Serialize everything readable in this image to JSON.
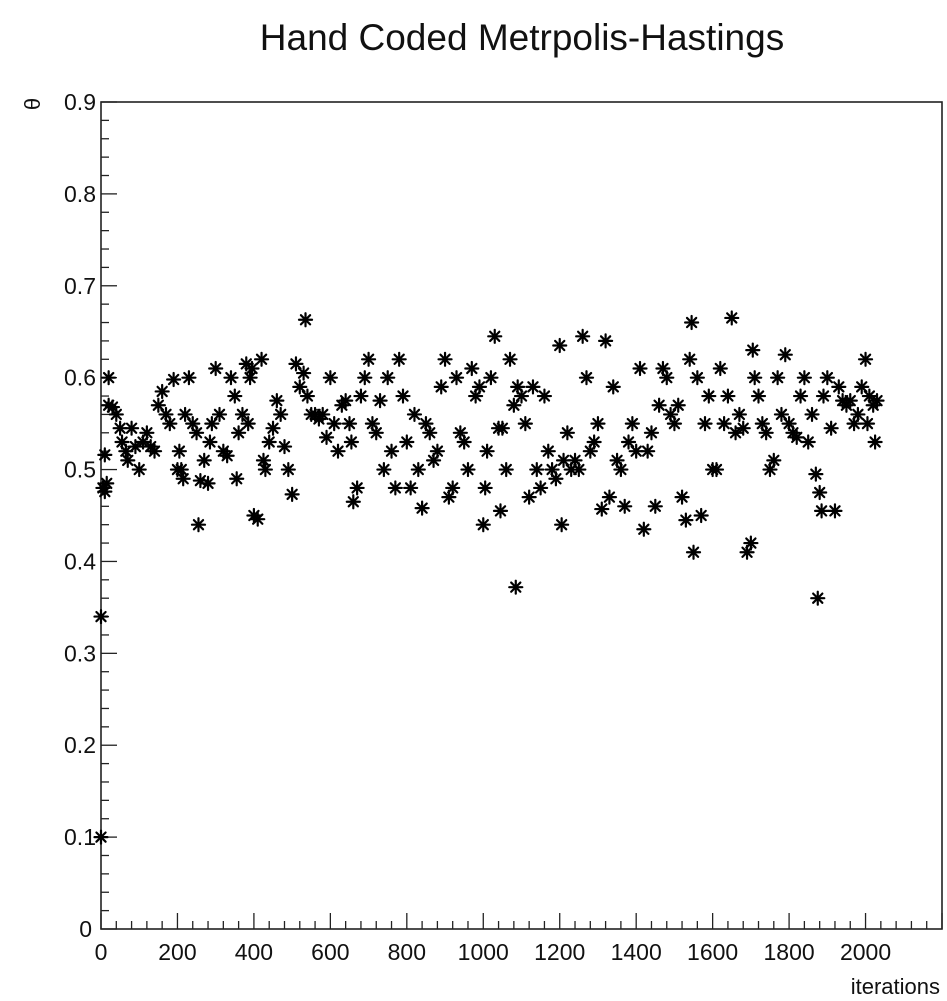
{
  "chart_data": {
    "type": "scatter",
    "title": "Hand Coded Metrpolis-Hastings",
    "xlabel": "iterations",
    "ylabel": "θ",
    "xlim": [
      0,
      2200
    ],
    "ylim": [
      0,
      0.9
    ],
    "marker": "asterisk",
    "grid": false,
    "marker_color": "#000000",
    "x_ticks": [
      0,
      200,
      400,
      600,
      800,
      1000,
      1200,
      1400,
      1600,
      1800,
      2000
    ],
    "x_tick_labels": [
      "0",
      "200",
      "400",
      "600",
      "800",
      "1000",
      "1200",
      "1400",
      "1600",
      "1800",
      "2000"
    ],
    "y_ticks": [
      0.1,
      0.2,
      0.3,
      0.4,
      0.5,
      0.6,
      0.7,
      0.8,
      0.9
    ],
    "y_tick_labels": [
      "0.1",
      "0.2",
      "0.3",
      "0.4",
      "0.5",
      "0.6",
      "0.7",
      "0.8",
      "0.9"
    ],
    "origin_label": "0",
    "points": [
      [
        0,
        0.1
      ],
      [
        0,
        0.34
      ],
      [
        5,
        0.48
      ],
      [
        10,
        0.476
      ],
      [
        15,
        0.485
      ],
      [
        10,
        0.516
      ],
      [
        20,
        0.6
      ],
      [
        20,
        0.57
      ],
      [
        30,
        0.568
      ],
      [
        40,
        0.56
      ],
      [
        50,
        0.545
      ],
      [
        55,
        0.53
      ],
      [
        65,
        0.52
      ],
      [
        70,
        0.51
      ],
      [
        80,
        0.545
      ],
      [
        90,
        0.525
      ],
      [
        100,
        0.5
      ],
      [
        110,
        0.53
      ],
      [
        120,
        0.54
      ],
      [
        130,
        0.525
      ],
      [
        140,
        0.52
      ],
      [
        150,
        0.57
      ],
      [
        160,
        0.585
      ],
      [
        170,
        0.56
      ],
      [
        180,
        0.55
      ],
      [
        190,
        0.598
      ],
      [
        200,
        0.5
      ],
      [
        205,
        0.52
      ],
      [
        210,
        0.5
      ],
      [
        215,
        0.49
      ],
      [
        220,
        0.56
      ],
      [
        230,
        0.6
      ],
      [
        240,
        0.55
      ],
      [
        250,
        0.54
      ],
      [
        255,
        0.44
      ],
      [
        260,
        0.488
      ],
      [
        270,
        0.51
      ],
      [
        280,
        0.485
      ],
      [
        285,
        0.53
      ],
      [
        290,
        0.55
      ],
      [
        300,
        0.61
      ],
      [
        310,
        0.56
      ],
      [
        320,
        0.52
      ],
      [
        330,
        0.515
      ],
      [
        340,
        0.6
      ],
      [
        350,
        0.58
      ],
      [
        355,
        0.49
      ],
      [
        360,
        0.54
      ],
      [
        370,
        0.56
      ],
      [
        380,
        0.615
      ],
      [
        385,
        0.55
      ],
      [
        390,
        0.6
      ],
      [
        395,
        0.61
      ],
      [
        400,
        0.45
      ],
      [
        410,
        0.446
      ],
      [
        420,
        0.62
      ],
      [
        425,
        0.51
      ],
      [
        430,
        0.5
      ],
      [
        440,
        0.53
      ],
      [
        450,
        0.545
      ],
      [
        460,
        0.575
      ],
      [
        470,
        0.56
      ],
      [
        480,
        0.525
      ],
      [
        490,
        0.5
      ],
      [
        500,
        0.473
      ],
      [
        510,
        0.615
      ],
      [
        520,
        0.59
      ],
      [
        530,
        0.605
      ],
      [
        535,
        0.663
      ],
      [
        540,
        0.58
      ],
      [
        550,
        0.56
      ],
      [
        560,
        0.56
      ],
      [
        570,
        0.555
      ],
      [
        580,
        0.56
      ],
      [
        590,
        0.535
      ],
      [
        600,
        0.6
      ],
      [
        610,
        0.55
      ],
      [
        620,
        0.52
      ],
      [
        630,
        0.57
      ],
      [
        640,
        0.575
      ],
      [
        650,
        0.55
      ],
      [
        655,
        0.53
      ],
      [
        660,
        0.465
      ],
      [
        670,
        0.48
      ],
      [
        680,
        0.58
      ],
      [
        690,
        0.6
      ],
      [
        700,
        0.62
      ],
      [
        710,
        0.55
      ],
      [
        720,
        0.54
      ],
      [
        730,
        0.575
      ],
      [
        740,
        0.5
      ],
      [
        750,
        0.6
      ],
      [
        760,
        0.52
      ],
      [
        770,
        0.48
      ],
      [
        780,
        0.62
      ],
      [
        790,
        0.58
      ],
      [
        800,
        0.53
      ],
      [
        810,
        0.48
      ],
      [
        820,
        0.56
      ],
      [
        830,
        0.5
      ],
      [
        840,
        0.458
      ],
      [
        850,
        0.55
      ],
      [
        860,
        0.54
      ],
      [
        870,
        0.51
      ],
      [
        880,
        0.52
      ],
      [
        890,
        0.59
      ],
      [
        900,
        0.62
      ],
      [
        910,
        0.47
      ],
      [
        920,
        0.48
      ],
      [
        930,
        0.6
      ],
      [
        940,
        0.54
      ],
      [
        950,
        0.53
      ],
      [
        960,
        0.5
      ],
      [
        970,
        0.61
      ],
      [
        980,
        0.58
      ],
      [
        990,
        0.59
      ],
      [
        1000,
        0.44
      ],
      [
        1005,
        0.48
      ],
      [
        1010,
        0.52
      ],
      [
        1020,
        0.6
      ],
      [
        1030,
        0.645
      ],
      [
        1040,
        0.545
      ],
      [
        1045,
        0.455
      ],
      [
        1050,
        0.545
      ],
      [
        1060,
        0.5
      ],
      [
        1070,
        0.62
      ],
      [
        1080,
        0.57
      ],
      [
        1085,
        0.372
      ],
      [
        1090,
        0.59
      ],
      [
        1100,
        0.58
      ],
      [
        1110,
        0.55
      ],
      [
        1120,
        0.47
      ],
      [
        1130,
        0.59
      ],
      [
        1140,
        0.5
      ],
      [
        1150,
        0.48
      ],
      [
        1160,
        0.58
      ],
      [
        1170,
        0.52
      ],
      [
        1180,
        0.5
      ],
      [
        1190,
        0.49
      ],
      [
        1200,
        0.635
      ],
      [
        1205,
        0.44
      ],
      [
        1210,
        0.51
      ],
      [
        1220,
        0.54
      ],
      [
        1230,
        0.5
      ],
      [
        1240,
        0.51
      ],
      [
        1250,
        0.5
      ],
      [
        1260,
        0.645
      ],
      [
        1270,
        0.6
      ],
      [
        1280,
        0.52
      ],
      [
        1290,
        0.53
      ],
      [
        1300,
        0.55
      ],
      [
        1310,
        0.457
      ],
      [
        1320,
        0.64
      ],
      [
        1330,
        0.47
      ],
      [
        1340,
        0.59
      ],
      [
        1350,
        0.51
      ],
      [
        1360,
        0.5
      ],
      [
        1370,
        0.46
      ],
      [
        1380,
        0.53
      ],
      [
        1390,
        0.55
      ],
      [
        1400,
        0.52
      ],
      [
        1410,
        0.61
      ],
      [
        1420,
        0.435
      ],
      [
        1430,
        0.52
      ],
      [
        1440,
        0.54
      ],
      [
        1450,
        0.46
      ],
      [
        1460,
        0.57
      ],
      [
        1470,
        0.61
      ],
      [
        1480,
        0.6
      ],
      [
        1490,
        0.56
      ],
      [
        1500,
        0.55
      ],
      [
        1510,
        0.57
      ],
      [
        1520,
        0.47
      ],
      [
        1530,
        0.445
      ],
      [
        1540,
        0.62
      ],
      [
        1545,
        0.66
      ],
      [
        1550,
        0.41
      ],
      [
        1560,
        0.6
      ],
      [
        1570,
        0.45
      ],
      [
        1580,
        0.55
      ],
      [
        1590,
        0.58
      ],
      [
        1600,
        0.5
      ],
      [
        1610,
        0.5
      ],
      [
        1620,
        0.61
      ],
      [
        1630,
        0.55
      ],
      [
        1640,
        0.58
      ],
      [
        1650,
        0.665
      ],
      [
        1660,
        0.54
      ],
      [
        1670,
        0.56
      ],
      [
        1680,
        0.545
      ],
      [
        1690,
        0.41
      ],
      [
        1700,
        0.42
      ],
      [
        1705,
        0.63
      ],
      [
        1710,
        0.6
      ],
      [
        1720,
        0.58
      ],
      [
        1730,
        0.55
      ],
      [
        1740,
        0.54
      ],
      [
        1750,
        0.5
      ],
      [
        1760,
        0.51
      ],
      [
        1770,
        0.6
      ],
      [
        1780,
        0.56
      ],
      [
        1790,
        0.625
      ],
      [
        1800,
        0.55
      ],
      [
        1810,
        0.54
      ],
      [
        1820,
        0.535
      ],
      [
        1830,
        0.58
      ],
      [
        1840,
        0.6
      ],
      [
        1850,
        0.53
      ],
      [
        1860,
        0.56
      ],
      [
        1870,
        0.495
      ],
      [
        1875,
        0.36
      ],
      [
        1880,
        0.475
      ],
      [
        1885,
        0.455
      ],
      [
        1890,
        0.58
      ],
      [
        1900,
        0.6
      ],
      [
        1910,
        0.545
      ],
      [
        1920,
        0.455
      ],
      [
        1930,
        0.59
      ],
      [
        1940,
        0.575
      ],
      [
        1950,
        0.57
      ],
      [
        1960,
        0.575
      ],
      [
        1970,
        0.55
      ],
      [
        1980,
        0.56
      ],
      [
        1990,
        0.59
      ],
      [
        2000,
        0.62
      ],
      [
        2005,
        0.55
      ],
      [
        2010,
        0.58
      ],
      [
        2020,
        0.57
      ],
      [
        2025,
        0.53
      ],
      [
        2030,
        0.575
      ]
    ]
  }
}
